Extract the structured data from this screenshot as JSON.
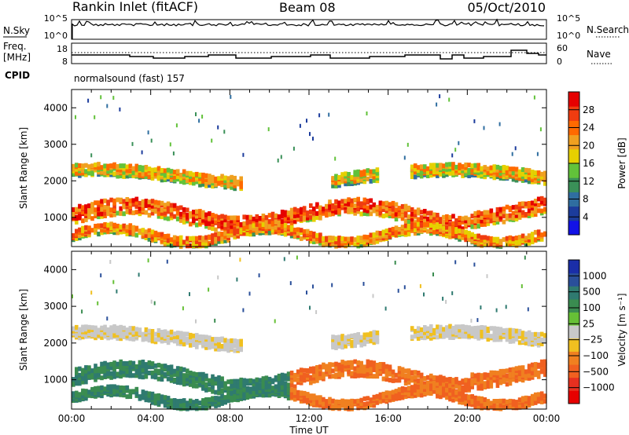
{
  "header": {
    "station": "Rankin Inlet (fitACF)",
    "beam": "Beam 08",
    "date": "05/Oct/2010"
  },
  "nsky_panel": {
    "left_label": "N.Sky",
    "left_ticks": [
      "10^5",
      "10^0"
    ],
    "right_label": "N.Search",
    "right_ticks": [
      "10^5",
      "10^0"
    ]
  },
  "freq_panel": {
    "left_label_1": "Freq.",
    "left_label_2": "[MHz]",
    "left_ticks": [
      "18",
      "8"
    ],
    "right_label": "Nave",
    "right_ticks": [
      "60",
      "0"
    ]
  },
  "cpid": {
    "label": "CPID",
    "value": "normalsound (fast) 157"
  },
  "colors": {
    "power_scale": [
      "#1212e6",
      "#1c3c9c",
      "#2f6ea0",
      "#3a9058",
      "#62c23a",
      "#e6d000",
      "#f0a020",
      "#ff6a00",
      "#f03c10",
      "#e60000"
    ],
    "velocity_scale": [
      "#1a2ea8",
      "#2a4f9a",
      "#2f7a70",
      "#3a8c50",
      "#66c036",
      "#c8c8c8",
      "#f0c020",
      "#f08020",
      "#f06020",
      "#e63020",
      "#e60000"
    ]
  },
  "chart_data": [
    {
      "type": "heatmap",
      "name": "power",
      "ylabel": "Slant Range [km]",
      "yticks": [
        "1000",
        "2000",
        "3000",
        "4000"
      ],
      "ylim": [
        200,
        4500
      ],
      "xlim": [
        0,
        24
      ],
      "colorbar_label": "Power [dB]",
      "colorbar_ticks": [
        "4",
        "8",
        "12",
        "16",
        "20",
        "24",
        "28"
      ],
      "colorbar_range": [
        0,
        32
      ]
    },
    {
      "type": "heatmap",
      "name": "velocity",
      "ylabel": "Slant Range [km]",
      "yticks": [
        "1000",
        "2000",
        "3000",
        "4000"
      ],
      "ylim": [
        200,
        4500
      ],
      "xlim": [
        0,
        24
      ],
      "xlabel": "Time UT",
      "xticks": [
        "00:00",
        "04:00",
        "08:00",
        "12:00",
        "16:00",
        "20:00",
        "00:00"
      ],
      "colorbar_label": "Velocity [m s⁻¹]",
      "colorbar_ticks": [
        "1000",
        "500",
        "100",
        "25",
        "−25",
        "−100",
        "−500",
        "−1000"
      ]
    }
  ]
}
